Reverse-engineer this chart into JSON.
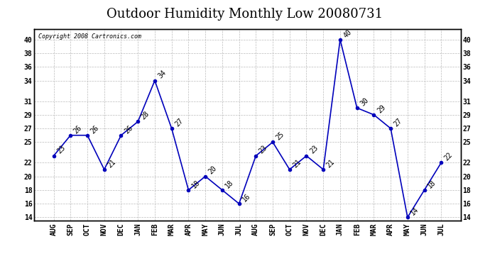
{
  "title": "Outdoor Humidity Monthly Low 20080731",
  "copyright": "Copyright 2008 Cartronics.com",
  "months": [
    "AUG",
    "SEP",
    "OCT",
    "NOV",
    "DEC",
    "JAN",
    "FEB",
    "MAR",
    "APR",
    "MAY",
    "JUN",
    "JUL",
    "AUG",
    "SEP",
    "OCT",
    "NOV",
    "DEC",
    "JAN",
    "FEB",
    "MAR",
    "APR",
    "MAY",
    "JUN",
    "JUL"
  ],
  "values": [
    23,
    26,
    26,
    21,
    26,
    28,
    34,
    27,
    18,
    20,
    18,
    16,
    23,
    25,
    21,
    23,
    21,
    40,
    30,
    29,
    27,
    14,
    18,
    22
  ],
  "ylim_min": 13.5,
  "ylim_max": 41.5,
  "yticks": [
    14,
    16,
    18,
    20,
    22,
    25,
    27,
    29,
    31,
    34,
    36,
    38,
    40
  ],
  "line_color": "#0000BB",
  "marker_color": "#0000BB",
  "bg_color": "#FFFFFF",
  "grid_color": "#BBBBBB",
  "title_fontsize": 13,
  "tick_fontsize": 7,
  "annot_fontsize": 7
}
